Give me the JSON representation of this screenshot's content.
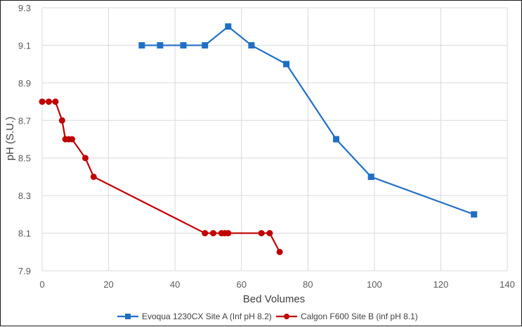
{
  "chart_data": {
    "type": "line",
    "xlabel": "Bed Volumes",
    "ylabel": "pH (S.U.)",
    "xlim": [
      0,
      140
    ],
    "ylim": [
      7.9,
      9.3
    ],
    "x_ticks": [
      "0",
      "20",
      "40",
      "60",
      "80",
      "100",
      "120",
      "140"
    ],
    "y_ticks": [
      "7.9",
      "8.1",
      "8.3",
      "8.5",
      "8.7",
      "8.9",
      "9.1",
      "9.3"
    ],
    "grid": true,
    "legend_position": "bottom",
    "series": [
      {
        "name": "Evoqua 1230CX Site A (Inf pH 8.2)",
        "color": "#1f6fc5",
        "marker": "square",
        "x": [
          30,
          35.5,
          42.5,
          49,
          56,
          63,
          73.5,
          88.5,
          99,
          130
        ],
        "y": [
          9.1,
          9.1,
          9.1,
          9.1,
          9.2,
          9.1,
          9.0,
          8.6,
          8.4,
          8.2
        ]
      },
      {
        "name": "Calgon F600 Site B (inf pH 8.1)",
        "color": "#c00000",
        "marker": "circle",
        "x": [
          0,
          2,
          4,
          6,
          7,
          8,
          9,
          13,
          15.5,
          49,
          51.5,
          54,
          55,
          56,
          66,
          68.5,
          71.5
        ],
        "y": [
          8.8,
          8.8,
          8.8,
          8.7,
          8.6,
          8.6,
          8.6,
          8.5,
          8.4,
          8.1,
          8.1,
          8.1,
          8.1,
          8.1,
          8.1,
          8.1,
          8.0
        ]
      }
    ]
  }
}
